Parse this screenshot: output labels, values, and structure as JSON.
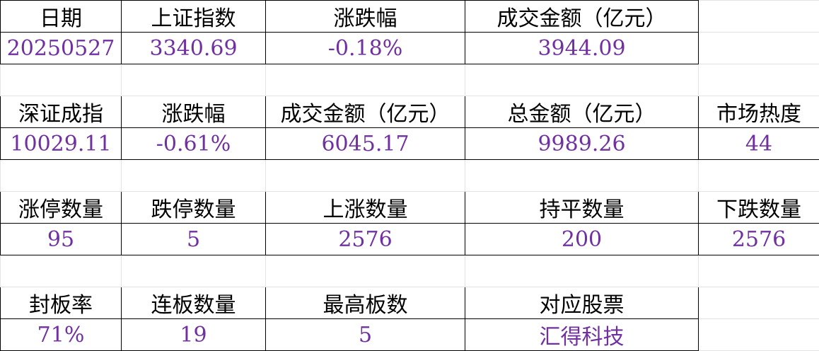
{
  "colors": {
    "header_text": "#000000",
    "value_text": "#7030a0"
  },
  "sections": [
    {
      "headers": [
        "日期",
        "上证指数",
        "涨跌幅",
        "成交金额（亿元）"
      ],
      "values": [
        "20250527",
        "3340.69",
        "-0.18%",
        "3944.09"
      ]
    },
    {
      "headers": [
        "深证成指",
        "涨跌幅",
        "成交金额（亿元）",
        "总金额（亿元）",
        "市场热度"
      ],
      "values": [
        "10029.11",
        "-0.61%",
        "6045.17",
        "9989.26",
        "44"
      ]
    },
    {
      "headers": [
        "涨停数量",
        "跌停数量",
        "上涨数量",
        "持平数量",
        "下跌数量"
      ],
      "values": [
        "95",
        "5",
        "2576",
        "200",
        "2576"
      ]
    },
    {
      "headers": [
        "封板率",
        "连板数量",
        "最高板数",
        "对应股票"
      ],
      "values": [
        "71%",
        "19",
        "5",
        "汇得科技"
      ]
    }
  ]
}
